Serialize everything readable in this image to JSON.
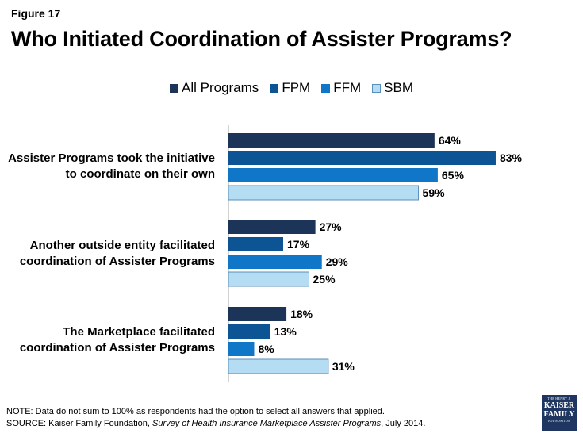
{
  "figure_label": "Figure 17",
  "title": "Who Initiated Coordination of Assister Programs?",
  "colors": {
    "all_programs": "#1c3458",
    "fpm": "#0c5494",
    "ffm": "#1076c7",
    "sbm": "#b4dcf2"
  },
  "chart_data": {
    "type": "bar",
    "orientation": "horizontal",
    "categories": [
      "Assister Programs took the initiative to coordinate on their own",
      "Another outside entity facilitated coordination of Assister Programs",
      "The Marketplace facilitated coordination of Assister Programs"
    ],
    "category_lines": [
      [
        "Assister Programs took the initiative",
        " to coordinate on their own"
      ],
      [
        "Another outside entity facilitated",
        "coordination of Assister Programs"
      ],
      [
        "The Marketplace facilitated",
        "coordination of Assister Programs"
      ]
    ],
    "series": [
      {
        "name": "All Programs",
        "values": [
          64,
          27,
          18
        ],
        "labels": [
          "64%",
          "27%",
          "18%"
        ]
      },
      {
        "name": "FPM",
        "values": [
          83,
          17,
          13
        ],
        "labels": [
          "83%",
          "17%",
          "13%"
        ]
      },
      {
        "name": "FFM",
        "values": [
          65,
          29,
          8
        ],
        "labels": [
          "65%",
          "29%",
          "8%"
        ]
      },
      {
        "name": "SBM",
        "values": [
          59,
          25,
          31
        ],
        "labels": [
          "59%",
          "25%",
          "31%"
        ]
      }
    ],
    "xlim": [
      0,
      100
    ],
    "unit": "%",
    "legend_position": "top-center",
    "grid": false
  },
  "note": "NOTE: Data do not sum to 100% as respondents had the option to select all answers that applied.",
  "source_prefix": "SOURCE: Kaiser Family Foundation, ",
  "source_title": "Survey of Health Insurance Marketplace Assister Programs",
  "source_suffix": ", July 2014.",
  "logo": {
    "line1": "THE HENRY J.",
    "line2": "KAISER",
    "line3": "FAMILY",
    "line4": "FOUNDATION"
  }
}
